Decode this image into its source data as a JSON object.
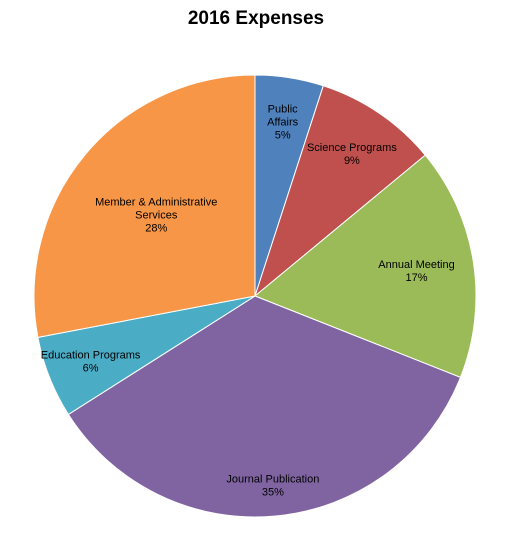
{
  "chart_data": {
    "type": "pie",
    "title": "2016 Expenses",
    "start_angle_deg": 0,
    "direction": "clockwise",
    "slices": [
      {
        "label": [
          "Public",
          "Affairs"
        ],
        "value": 5,
        "value_label": "5%",
        "color": "#4F81BD"
      },
      {
        "label": [
          "Science Programs"
        ],
        "value": 9,
        "value_label": "9%",
        "color": "#C0504D"
      },
      {
        "label": [
          "Annual Meeting"
        ],
        "value": 17,
        "value_label": "17%",
        "color": "#9BBB59"
      },
      {
        "label": [
          "Journal Publication"
        ],
        "value": 35,
        "value_label": "35%",
        "color": "#8064A2"
      },
      {
        "label": [
          "Education Programs"
        ],
        "value": 6,
        "value_label": "6%",
        "color": "#4BACC6"
      },
      {
        "label": [
          "Member & Administrative",
          "Services"
        ],
        "value": 28,
        "value_label": "28%",
        "color": "#F79646"
      }
    ]
  }
}
